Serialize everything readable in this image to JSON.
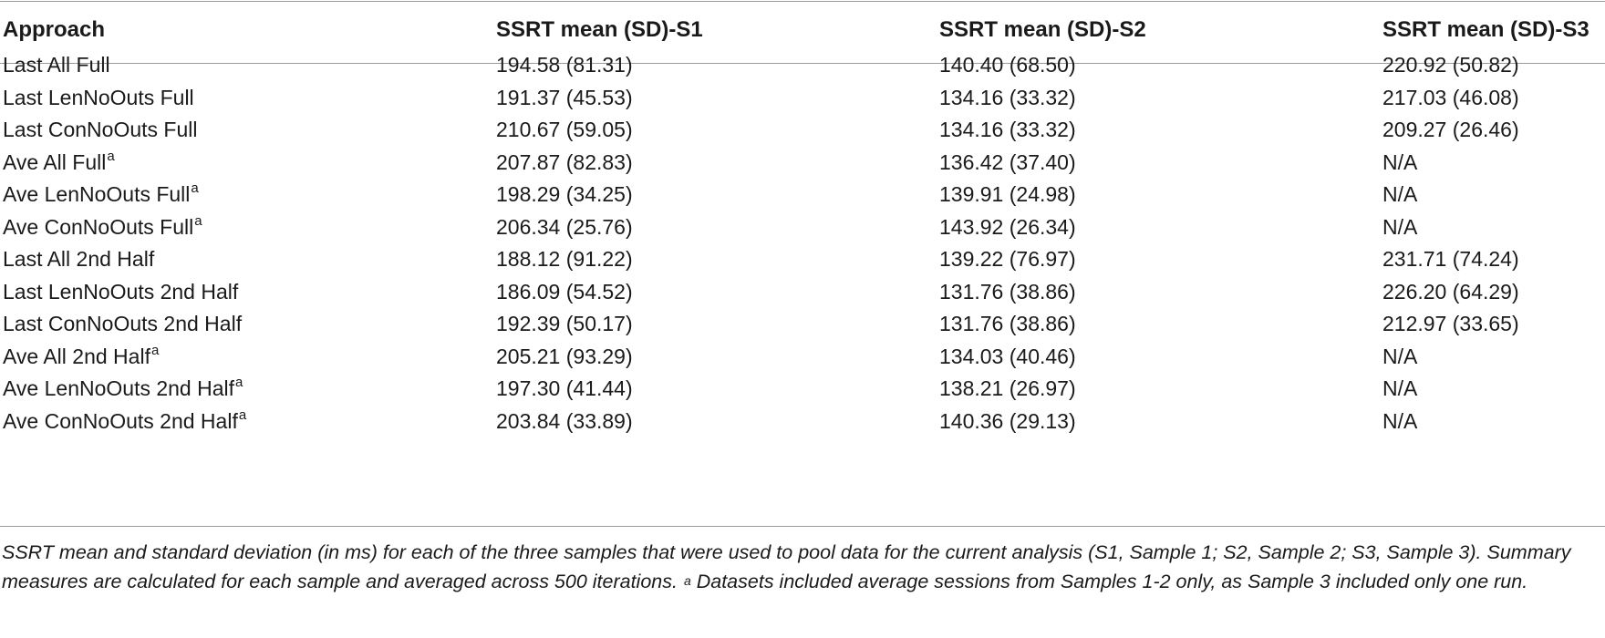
{
  "table": {
    "headers": [
      "Approach",
      "SSRT mean (SD)-S1",
      "SSRT mean (SD)-S2",
      "SSRT mean (SD)-S3"
    ],
    "rows": [
      {
        "approach": "Last All Full",
        "sup": "",
        "s1": "194.58 (81.31)",
        "s2": "140.40 (68.50)",
        "s3": "220.92 (50.82)"
      },
      {
        "approach": "Last LenNoOuts Full",
        "sup": "",
        "s1": "191.37 (45.53)",
        "s2": "134.16 (33.32)",
        "s3": "217.03 (46.08)"
      },
      {
        "approach": "Last ConNoOuts Full",
        "sup": "",
        "s1": "210.67 (59.05)",
        "s2": "134.16 (33.32)",
        "s3": "209.27 (26.46)"
      },
      {
        "approach": "Ave All Full",
        "sup": "a",
        "s1": "207.87 (82.83)",
        "s2": "136.42 (37.40)",
        "s3": "N/A"
      },
      {
        "approach": "Ave LenNoOuts Full",
        "sup": "a",
        "s1": "198.29 (34.25)",
        "s2": "139.91 (24.98)",
        "s3": "N/A"
      },
      {
        "approach": "Ave ConNoOuts Full",
        "sup": "a",
        "s1": "206.34 (25.76)",
        "s2": "143.92 (26.34)",
        "s3": "N/A"
      },
      {
        "approach": "Last All 2nd Half",
        "sup": "",
        "s1": "188.12 (91.22)",
        "s2": "139.22 (76.97)",
        "s3": "231.71 (74.24)"
      },
      {
        "approach": "Last LenNoOuts 2nd Half",
        "sup": "",
        "s1": "186.09 (54.52)",
        "s2": "131.76 (38.86)",
        "s3": "226.20 (64.29)"
      },
      {
        "approach": "Last ConNoOuts 2nd Half",
        "sup": "",
        "s1": "192.39 (50.17)",
        "s2": "131.76 (38.86)",
        "s3": "212.97 (33.65)"
      },
      {
        "approach": "Ave All 2nd Half",
        "sup": "a",
        "s1": "205.21 (93.29)",
        "s2": "134.03 (40.46)",
        "s3": "N/A"
      },
      {
        "approach": "Ave LenNoOuts 2nd Half",
        "sup": "a",
        "s1": "197.30 (41.44)",
        "s2": "138.21 (26.97)",
        "s3": "N/A"
      },
      {
        "approach": "Ave ConNoOuts 2nd Half",
        "sup": "a",
        "s1": "203.84 (33.89)",
        "s2": "140.36 (29.13)",
        "s3": "N/A"
      }
    ]
  },
  "caption": {
    "part1": "SSRT mean and standard deviation (in ms) for each of the three samples that were used to pool data for the current analysis (S1, Sample 1; S2, Sample 2; S3, Sample 3). Summary measures are calculated for each sample and averaged across 500 iterations. ",
    "sup": "a",
    "part2": " Datasets included average sessions from Samples 1-2 only, as Sample 3 included only one run."
  }
}
